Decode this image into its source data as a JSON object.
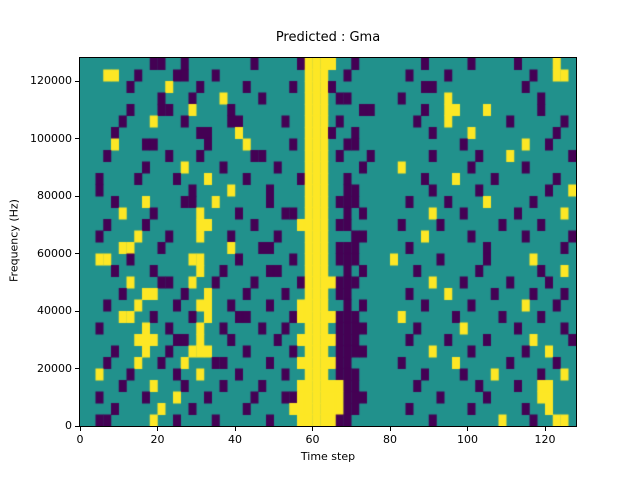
{
  "chart_data": {
    "type": "heatmap",
    "title": "Predicted : Gma",
    "xlabel": "Time step",
    "ylabel": "Frequency (Hz)",
    "xlim": [
      0,
      128
    ],
    "ylim": [
      0,
      128000
    ],
    "x_ticks": [
      0,
      20,
      40,
      60,
      80,
      100,
      120
    ],
    "y_ticks": [
      0,
      20000,
      40000,
      60000,
      80000,
      100000,
      120000
    ],
    "colormap": "viridis",
    "palette": {
      ".": "#21918c",
      "d": "#440154",
      "y": "#fde725"
    },
    "value_meaning": {
      ".": 1,
      "d": 0,
      "y": 2
    },
    "grid": {
      "cols": 64,
      "rows": 32,
      "row_order": "top_to_bottom",
      "time_steps_per_col": 2,
      "hz_per_row": 4000
    },
    "notable_features": [
      "solid yellow vertical band near time steps 58-66 spanning full frequency range",
      "dark purple vertical band near time steps 66-76 in low-mid frequencies",
      "dense scattered yellow/purple activity for time steps 10-40 in mid frequencies",
      "sparse scattered purple cells over teal background elsewhere"
    ],
    "matrix": [
      [
        "........",
        ".dd..d..",
        "......d.",
        "....dyyy",
        "y..d....",
        "....d...",
        "..d.....",
        "d....y.."
      ],
      [
        "...yy..d",
        "....dd..",
        ".d......",
        ".....yyy",
        "..d.....",
        "..d....d",
        "........",
        "..d..yy."
      ],
      [
        "......d.",
        "...y...d",
        ".....d..",
        "...d.yyy",
        "d.......",
        "....dd..",
        "........",
        ".d......"
      ],
      [
        "........",
        "..d...d.",
        "..y....d",
        ".....yyy",
        ".dd.....",
        ".d.....y",
        "........",
        "...d...."
      ],
      [
        "......d.",
        "..dd..y.",
        "...d....",
        ".....yyy",
        "....dd..",
        "....d..y",
        "y...y...",
        "...d...."
      ],
      [
        ".....d..",
        ".y...d..",
        "...dd...",
        "..d..yyy",
        ".d......",
        "...d...y",
        ".......d",
        "......d."
      ],
      [
        "....d...",
        ".......d",
        "d...y...",
        ".....yyy",
        "d..d....",
        ".....d..",
        "..y.....",
        ".....d.."
      ],
      [
        "....y...",
        "dd......",
        "d....y..",
        "...d.yyy",
        "..dd....",
        "........",
        ".d......",
        ".y..d..."
      ],
      [
        "...d....",
        "...d...d",
        "......dd",
        ".....yyy",
        ".d...d..",
        ".....d..",
        "...d...y",
        ".......d"
      ],
      [
        "........",
        "d....y..",
        "..d.....",
        ".d...yyy",
        "....d...",
        ".y......",
        "..d.....",
        ".d......"
      ],
      [
        "..d....d",
        "....d...",
        "y....d..",
        "....dyyy",
        "..d.....",
        "....d...",
        "y....d..",
        ".....d.."
      ],
      [
        "..d.....",
        "......d.",
        "...y....",
        "d....yyy",
        "..dd....",
        ".....d..",
        "...d....",
        "....d..y"
      ],
      [
        "....d...",
        "y....dd.",
        ".y......",
        "d....yyy",
        ".ddd....",
        "..d....d",
        "....y...",
        "..d....."
      ],
      [
        ".....y..",
        ".d.....y",
        "....d...",
        "..dd.yyy",
        "..d.d...",
        ".....y..",
        ".d......",
        "d.....y."
      ],
      [
        "...d....",
        "d......y",
        "y.....d.",
        "....yyyy",
        ".dd.....",
        ".d....d.",
        "......d.",
        "...d...."
      ],
      [
        "..d....y",
        "...d...y",
        "...d....",
        ".d...yyy",
        "...dd...",
        "....y...",
        "..d.....",
        ".d.....d"
      ],
      [
        ".....yy.",
        "..d.....",
        "...y...d",
        "d....yyy",
        ".ddd....",
        "..d.....",
        "....d...",
        "......d."
      ],
      [
        "..yy..d.",
        "......yy",
        "....d...",
        "...d.yyy",
        ".ddd....",
        "y.....d.",
        "....d...",
        "..y....."
      ],
      [
        "....d...",
        ".d.....y",
        "..d.....",
        "dd...yyy",
        "..d.d...",
        "...d....",
        "...d....",
        "...d..y."
      ],
      [
        "......y.",
        "..dd..y.",
        ".d....d.",
        "....dyyy",
        "yddd....",
        ".....y..",
        ".d.....d",
        "....d..."
      ],
      [
        ".....d..",
        "yy...d..",
        "y....d..",
        "..d..yyy",
        ".dd.....",
        "..d....y",
        ".....d..",
        "..d...d."
      ],
      [
        "...d...y",
        "....d..y",
        "y..d....",
        "d...yyyy",
        "..d.d...",
        "....d...",
        "..d.....",
        ".y...d.."
      ],
      [
        ".....yy.",
        ".d....d.",
        "y...dd..",
        "...dyyyy",
        "yddd....",
        ".y......",
        "d.....d.",
        "...d...."
      ],
      [
        "..d.....",
        "y..d...y",
        "..d....d",
        "..d..yyy",
        ".dddd...",
        "...d....",
        ".y......",
        "d.....d."
      ],
      [
        ".......y",
        "yy..dd.y",
        "...d....",
        ".d..yyyy",
        "yddd....",
        "..d....d",
        "....d...",
        "..y....d"
      ],
      [
        "....d...",
        "y..d..yy",
        "y....d..",
        "...d.yyy",
        ".dddd...",
        ".....y..",
        "..d.....",
        ".d..y..."
      ],
      [
        "...d...y",
        "..d..y..",
        ".dd.....",
        "d...yyyy",
        "ydd.....",
        ".d......",
        "y......d",
        ".....d.."
      ],
      [
        "..y...d.",
        "....d..y",
        "....d...",
        "..d..yyy",
        ".ddd....",
        "....d...",
        ".d...y..",
        "...d..y."
      ],
      [
        ".....d..",
        ".y...d..",
        "..d....d",
        "....yyyy",
        "yydd....",
        "...d....",
        "...d....",
        "d..yy..."
      ],
      [
        "..d.....",
        "d...y...",
        "d.....d.",
        "..ddyyyy",
        "yyddd...",
        "......d.",
        "....d...",
        "...yy..."
      ],
      [
        "....d...",
        "..y...d.",
        ".....d..",
        "...yyyyy",
        "yydd....",
        "..d.....",
        "..d.....",
        ".d..y..."
      ],
      [
        "..dd....",
        ".y..d...",
        ".d......",
        "d...yyyy",
        "ydd.....",
        ".....d..",
        "......y.",
        "..d..yy."
      ]
    ]
  }
}
